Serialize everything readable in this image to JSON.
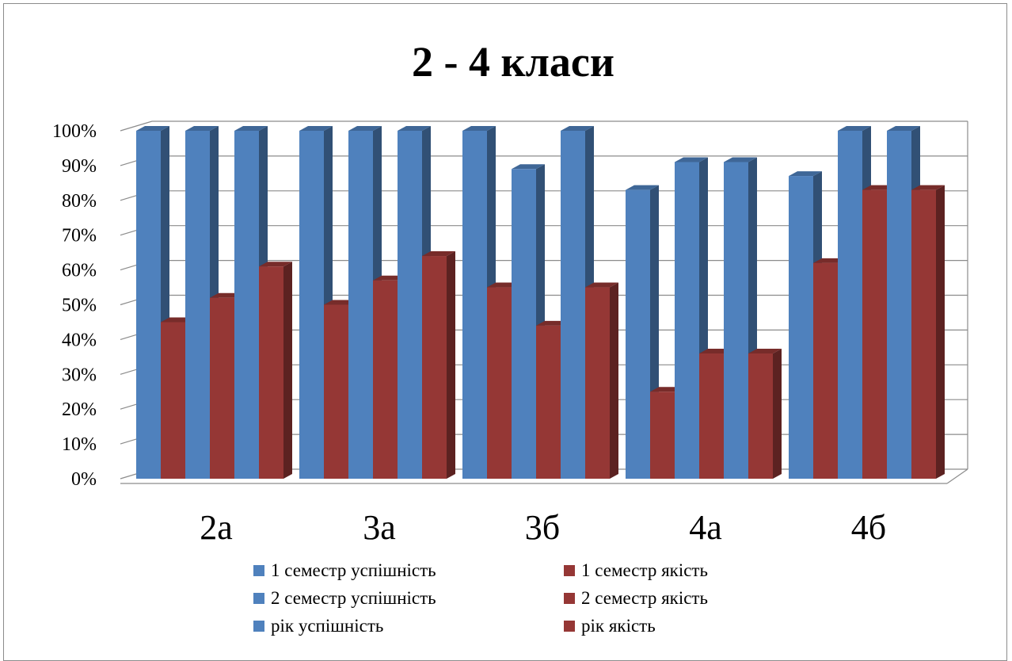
{
  "chart_data": {
    "type": "bar",
    "title": "2 - 4 класи",
    "xlabel": "",
    "ylabel": "",
    "categories": [
      "2а",
      "3а",
      "3б",
      "4а",
      "4б"
    ],
    "ylim": [
      0,
      1
    ],
    "yticks": [
      "0%",
      "10%",
      "20%",
      "30%",
      "40%",
      "50%",
      "60%",
      "70%",
      "80%",
      "90%",
      "100%"
    ],
    "grid": true,
    "legend_position": "bottom",
    "series": [
      {
        "name": "1 семестр успішність",
        "color": "#4F81BD",
        "values": [
          1.0,
          1.0,
          1.0,
          0.83,
          0.87
        ]
      },
      {
        "name": "1 семестр якість",
        "color": "#953735",
        "values": [
          0.45,
          0.5,
          0.55,
          0.25,
          0.62
        ]
      },
      {
        "name": "2 семестр успішність",
        "color": "#4F81BD",
        "values": [
          1.0,
          1.0,
          0.89,
          0.91,
          1.0
        ]
      },
      {
        "name": "2 семестр якість",
        "color": "#953735",
        "values": [
          0.52,
          0.57,
          0.44,
          0.36,
          0.83
        ]
      },
      {
        "name": "рік успішність",
        "color": "#4F81BD",
        "values": [
          1.0,
          1.0,
          1.0,
          0.91,
          1.0
        ]
      },
      {
        "name": "рік якість",
        "color": "#953735",
        "values": [
          0.61,
          0.64,
          0.55,
          0.36,
          0.83
        ]
      }
    ]
  }
}
